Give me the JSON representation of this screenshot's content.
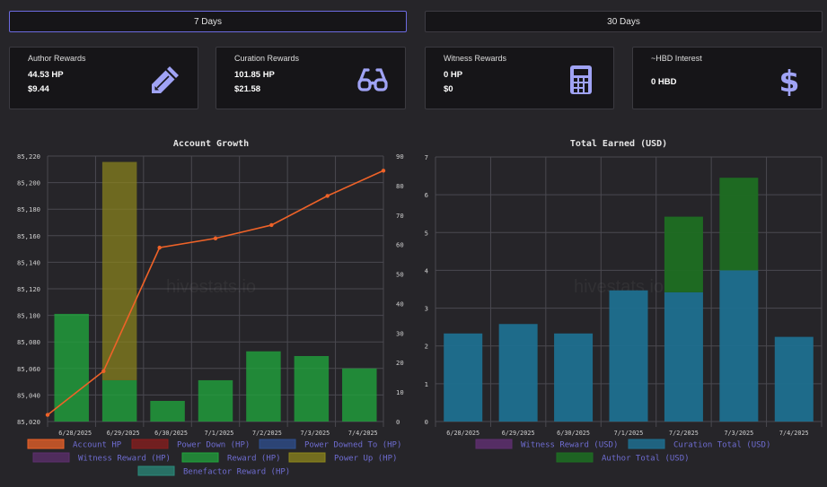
{
  "tabs": [
    {
      "label": "7 Days",
      "active": true
    },
    {
      "label": "30 Days",
      "active": false
    }
  ],
  "cards": [
    {
      "title": "Author Rewards",
      "value1": "44.53 HP",
      "value2": "$9.44",
      "icon": "pencil-icon"
    },
    {
      "title": "Curation Rewards",
      "value1": "101.85 HP",
      "value2": "$21.58",
      "icon": "glasses-icon"
    },
    {
      "title": "Witness Rewards",
      "value1": "0 HP",
      "value2": "$0",
      "icon": "calculator-icon"
    },
    {
      "title": "~HBD Interest",
      "value1": "0 HBD",
      "value2": "",
      "icon": "dollar-icon"
    }
  ],
  "colors": {
    "icon": "#a0a3f5",
    "accountHP": "#ee6228",
    "reward": "#21a33c",
    "powerUp": "#8d861c",
    "curation": "#1e6f8f",
    "authorTotal": "#1d6e22"
  },
  "watermark": "hivestats.io",
  "chart_data": [
    {
      "type": "bar",
      "title": "Account Growth",
      "categories": [
        "6/28/2025",
        "6/29/2025",
        "6/30/2025",
        "7/1/2025",
        "7/2/2025",
        "7/3/2025",
        "7/4/2025"
      ],
      "y_left": {
        "min": 85020,
        "max": 85220,
        "ticks": [
          "85,020",
          "85,040",
          "85,060",
          "85,080",
          "85,100",
          "85,120",
          "85,140",
          "85,160",
          "85,180",
          "85,200",
          "85,220"
        ]
      },
      "y_right": {
        "min": 0,
        "max": 90,
        "ticks": [
          "0",
          "10",
          "20",
          "30",
          "40",
          "50",
          "60",
          "70",
          "80",
          "90"
        ]
      },
      "series": [
        {
          "name": "Account HP",
          "kind": "line",
          "axis": "left",
          "color": "#ee6228",
          "values": [
            85025,
            85058,
            85151,
            85158,
            85168,
            85190,
            85209
          ]
        },
        {
          "name": "Power Down (HP)",
          "kind": "bar",
          "axis": "right",
          "color": "#8b1d1d",
          "values": [
            0,
            0,
            0,
            0,
            0,
            0,
            0
          ]
        },
        {
          "name": "Power Downed To (HP)",
          "kind": "bar",
          "axis": "right",
          "color": "#2f4f8f",
          "values": [
            0,
            0,
            0,
            0,
            0,
            0,
            0
          ]
        },
        {
          "name": "Witness Reward (HP)",
          "kind": "bar",
          "axis": "right",
          "color": "#5e2f6e",
          "values": [
            0,
            0,
            0,
            0,
            0,
            0,
            0
          ]
        },
        {
          "name": "Reward (HP)",
          "kind": "bar",
          "axis": "right",
          "color": "#21a33c",
          "values": [
            36.5,
            14,
            7,
            14,
            23.8,
            22.2,
            18
          ]
        },
        {
          "name": "Power Up (HP)",
          "kind": "bar",
          "axis": "right",
          "color": "#8d861c",
          "values": [
            0,
            74,
            0,
            0,
            0,
            0,
            0
          ]
        },
        {
          "name": "Benefactor Reward (HP)",
          "kind": "bar",
          "axis": "right",
          "color": "#2a8a7a",
          "values": [
            0,
            0,
            0,
            0,
            0,
            0,
            0
          ]
        }
      ]
    },
    {
      "type": "bar",
      "stacked": true,
      "title": "Total Earned (USD)",
      "categories": [
        "6/28/2025",
        "6/29/2025",
        "6/30/2025",
        "7/1/2025",
        "7/2/2025",
        "7/3/2025",
        "7/4/2025"
      ],
      "y": {
        "min": 0,
        "max": 7,
        "ticks": [
          "0",
          "1",
          "2",
          "3",
          "4",
          "5",
          "6",
          "7"
        ]
      },
      "series": [
        {
          "name": "Witness Reward (USD)",
          "color": "#5e2f6e",
          "values": [
            0,
            0,
            0,
            0,
            0,
            0,
            0
          ]
        },
        {
          "name": "Curation Total (USD)",
          "color": "#1e6f8f",
          "values": [
            2.33,
            2.58,
            2.33,
            3.47,
            3.42,
            4.0,
            2.24
          ]
        },
        {
          "name": "Author Total (USD)",
          "color": "#1d6e22",
          "values": [
            0,
            0,
            0,
            0,
            2.0,
            2.45,
            0
          ]
        }
      ]
    }
  ]
}
